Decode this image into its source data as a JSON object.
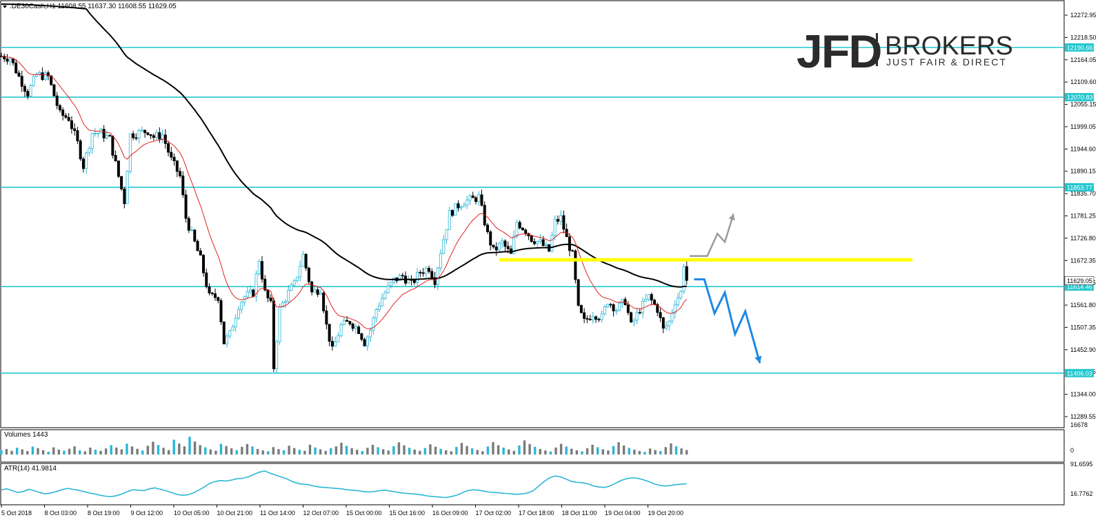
{
  "header": {
    "symbol_info": ".DE30Cash,H1  11608.55 11637.30 11608.55 11629.05",
    "volume_title": "Volumes 1443",
    "atr_title": "ATR(14) 41.9814"
  },
  "logo": {
    "main": "JFD",
    "secondary": "BROKERS",
    "tagline": "JUST FAIR & DIRECT"
  },
  "colors": {
    "candle_up": "#29b6d6",
    "candle_down": "#000000",
    "horizontal_level": "#22c7cf",
    "ma_slow": "#000000",
    "ma_fast": "#e02020",
    "yellow_line": "#ffff00",
    "scenario_up": "#9a9a9a",
    "scenario_down": "#1e88e5",
    "atr_line": "#29b6d6"
  },
  "chart_data": {
    "type": "candlestick",
    "instrument": ".DE30Cash",
    "timeframe": "H1",
    "price_axis": {
      "range": [
        11289.55,
        12295
      ],
      "tick_labels": [
        "12272.95",
        "12218.50",
        "12164.05",
        "12109.60",
        "12055.15",
        "11999.05",
        "11944.60",
        "11890.15",
        "11835.70",
        "11781.25",
        "11726.80",
        "11672.35",
        "11616.25",
        "11561.80",
        "11507.35",
        "11452.90",
        "11398.45",
        "11344.00",
        "11289.55"
      ]
    },
    "x_tick_labels": [
      "5 Oct 2018",
      "8 Oct 03:00",
      "8 Oct 19:00",
      "9 Oct 12:00",
      "10 Oct 05:00",
      "10 Oct 21:00",
      "11 Oct 14:00",
      "12 Oct 07:00",
      "15 Oct 00:00",
      "15 Oct 16:00",
      "16 Oct 09:00",
      "17 Oct 02:00",
      "17 Oct 18:00",
      "18 Oct 11:00",
      "19 Oct 04:00",
      "19 Oct 20:00"
    ],
    "levels": [
      {
        "value": 12190.66,
        "label": "12190.66"
      },
      {
        "value": 12070.83,
        "label": "12070.83"
      },
      {
        "value": 11853.77,
        "label": "11853.77"
      },
      {
        "value": 11614.46,
        "label": "11614.46"
      },
      {
        "value": 11406.03,
        "label": "11406.03"
      }
    ],
    "current_price": {
      "value": 11629.05,
      "label": "11629.05"
    },
    "yellow_level": 11679,
    "close_path": [
      {
        "x": 0,
        "y": 12170
      },
      {
        "x": 6,
        "y": 12165
      },
      {
        "x": 12,
        "y": 12120
      },
      {
        "x": 18,
        "y": 12080
      },
      {
        "x": 24,
        "y": 12125
      },
      {
        "x": 32,
        "y": 12120
      },
      {
        "x": 36,
        "y": 12075
      },
      {
        "x": 40,
        "y": 12030
      },
      {
        "x": 46,
        "y": 12020
      },
      {
        "x": 52,
        "y": 11960
      },
      {
        "x": 56,
        "y": 11905
      },
      {
        "x": 62,
        "y": 11985
      },
      {
        "x": 68,
        "y": 11985
      },
      {
        "x": 74,
        "y": 11970
      },
      {
        "x": 80,
        "y": 11880
      },
      {
        "x": 84,
        "y": 11820
      },
      {
        "x": 88,
        "y": 11980
      },
      {
        "x": 94,
        "y": 11985
      },
      {
        "x": 100,
        "y": 11990
      },
      {
        "x": 104,
        "y": 11975
      },
      {
        "x": 110,
        "y": 11980
      },
      {
        "x": 116,
        "y": 11920
      },
      {
        "x": 122,
        "y": 11880
      },
      {
        "x": 126,
        "y": 11780
      },
      {
        "x": 132,
        "y": 11720
      },
      {
        "x": 136,
        "y": 11680
      },
      {
        "x": 142,
        "y": 11590
      },
      {
        "x": 148,
        "y": 11590
      },
      {
        "x": 152,
        "y": 11480
      },
      {
        "x": 156,
        "y": 11500
      },
      {
        "x": 162,
        "y": 11570
      },
      {
        "x": 166,
        "y": 11590
      },
      {
        "x": 172,
        "y": 11600
      },
      {
        "x": 176,
        "y": 11680
      },
      {
        "x": 180,
        "y": 11600
      },
      {
        "x": 184,
        "y": 11570
      },
      {
        "x": 186,
        "y": 11420
      },
      {
        "x": 190,
        "y": 11560
      },
      {
        "x": 196,
        "y": 11600
      },
      {
        "x": 200,
        "y": 11620
      },
      {
        "x": 206,
        "y": 11690
      },
      {
        "x": 212,
        "y": 11600
      },
      {
        "x": 218,
        "y": 11610
      },
      {
        "x": 222,
        "y": 11520
      },
      {
        "x": 226,
        "y": 11460
      },
      {
        "x": 232,
        "y": 11520
      },
      {
        "x": 238,
        "y": 11530
      },
      {
        "x": 244,
        "y": 11510
      },
      {
        "x": 248,
        "y": 11480
      },
      {
        "x": 252,
        "y": 11510
      },
      {
        "x": 256,
        "y": 11560
      },
      {
        "x": 262,
        "y": 11600
      },
      {
        "x": 268,
        "y": 11630
      },
      {
        "x": 274,
        "y": 11640
      },
      {
        "x": 280,
        "y": 11620
      },
      {
        "x": 286,
        "y": 11650
      },
      {
        "x": 292,
        "y": 11660
      },
      {
        "x": 296,
        "y": 11630
      },
      {
        "x": 300,
        "y": 11700
      },
      {
        "x": 306,
        "y": 11790
      },
      {
        "x": 312,
        "y": 11810
      },
      {
        "x": 316,
        "y": 11820
      },
      {
        "x": 322,
        "y": 11825
      },
      {
        "x": 326,
        "y": 11830
      },
      {
        "x": 332,
        "y": 11740
      },
      {
        "x": 336,
        "y": 11700
      },
      {
        "x": 342,
        "y": 11720
      },
      {
        "x": 348,
        "y": 11690
      },
      {
        "x": 352,
        "y": 11770
      },
      {
        "x": 358,
        "y": 11750
      },
      {
        "x": 362,
        "y": 11730
      },
      {
        "x": 368,
        "y": 11720
      },
      {
        "x": 374,
        "y": 11700
      },
      {
        "x": 378,
        "y": 11770
      },
      {
        "x": 382,
        "y": 11780
      },
      {
        "x": 386,
        "y": 11730
      },
      {
        "x": 390,
        "y": 11690
      },
      {
        "x": 394,
        "y": 11560
      },
      {
        "x": 398,
        "y": 11530
      },
      {
        "x": 404,
        "y": 11550
      },
      {
        "x": 410,
        "y": 11540
      },
      {
        "x": 414,
        "y": 11580
      },
      {
        "x": 420,
        "y": 11560
      },
      {
        "x": 426,
        "y": 11580
      },
      {
        "x": 430,
        "y": 11520
      },
      {
        "x": 436,
        "y": 11560
      },
      {
        "x": 442,
        "y": 11590
      },
      {
        "x": 448,
        "y": 11560
      },
      {
        "x": 452,
        "y": 11510
      },
      {
        "x": 456,
        "y": 11530
      },
      {
        "x": 460,
        "y": 11580
      },
      {
        "x": 464,
        "y": 11600
      },
      {
        "x": 466,
        "y": 11670
      },
      {
        "x": 468,
        "y": 11630
      }
    ],
    "projected_paths": {
      "bullish": [
        {
          "x": 470,
          "y": 11688
        },
        {
          "x": 482,
          "y": 11688
        },
        {
          "x": 489,
          "y": 11742
        },
        {
          "x": 494,
          "y": 11722
        },
        {
          "x": 500,
          "y": 11790
        }
      ],
      "bearish": [
        {
          "x": 473,
          "y": 11632
        },
        {
          "x": 480,
          "y": 11632
        },
        {
          "x": 487,
          "y": 11550
        },
        {
          "x": 494,
          "y": 11600
        },
        {
          "x": 501,
          "y": 11500
        },
        {
          "x": 508,
          "y": 11555
        },
        {
          "x": 518,
          "y": 11430
        }
      ]
    },
    "volume": {
      "axis_labels": [
        "16678",
        "0"
      ],
      "max": 16678,
      "values": [
        3200,
        4200,
        2800,
        5100,
        3900,
        2600,
        6000,
        4800,
        3300,
        2100,
        5400,
        3700,
        2900,
        4400,
        6200,
        3100,
        2400,
        5200,
        3600,
        2800,
        4600,
        7100,
        5300,
        3900,
        8200,
        6100,
        4300,
        3000,
        6600,
        9700,
        7200,
        5100,
        3400,
        11200,
        8300,
        6200,
        13500,
        9800,
        7100,
        5400,
        3800,
        2900,
        8100,
        6400,
        4700,
        3300,
        5800,
        7900,
        6100,
        4200,
        3100,
        2500,
        5600,
        4100,
        3200,
        6700,
        4900,
        3600,
        2800,
        7400,
        5300,
        3900,
        2700,
        4800,
        6200,
        8900,
        6600,
        4800,
        3500,
        2600,
        5100,
        7300,
        5500,
        4000,
        3000,
        6300,
        9200,
        6900,
        5100,
        3700,
        2800,
        4900,
        7700,
        5900,
        4300,
        3200,
        2400,
        5700,
        8800,
        6500,
        4700,
        3400,
        2500,
        6100,
        9400,
        7000,
        5200,
        3800,
        2800,
        6900,
        10700,
        7900,
        5800,
        4200,
        3100,
        2300,
        5300,
        8100,
        6000,
        4400,
        3200,
        2400,
        4700,
        7400,
        5500,
        4000,
        3000,
        6400,
        9300,
        6800,
        5000,
        3600,
        2700,
        2000,
        4500,
        3400,
        2600,
        5600,
        8400,
        6200,
        4600,
        3400
      ]
    },
    "atr": {
      "name": "ATR(14)",
      "axis_labels": [
        "91.6595",
        "16.7762"
      ],
      "range": [
        16.7762,
        91.6595
      ],
      "values": [
        42,
        44,
        40,
        36,
        38,
        43,
        40,
        36,
        33,
        35,
        38,
        42,
        45,
        43,
        41,
        38,
        35,
        33,
        30,
        28,
        27,
        29,
        33,
        38,
        42,
        41,
        40,
        44,
        46,
        43,
        40,
        36,
        32,
        30,
        31,
        35,
        41,
        48,
        56,
        60,
        62,
        61,
        63,
        66,
        67,
        70,
        75,
        80,
        83,
        78,
        74,
        70,
        66,
        60,
        56,
        54,
        53,
        50,
        48,
        47,
        46,
        45,
        44,
        42,
        41,
        40,
        38,
        37,
        38,
        40,
        41,
        39,
        37,
        35,
        34,
        33,
        32,
        30,
        28,
        27,
        26,
        25,
        27,
        30,
        35,
        40,
        42,
        41,
        39,
        37,
        36,
        35,
        34,
        33,
        32,
        33,
        35,
        40,
        50,
        60,
        68,
        72,
        70,
        65,
        60,
        58,
        57,
        55,
        50,
        48,
        47,
        50,
        56,
        62,
        66,
        68,
        67,
        64,
        60,
        55,
        52,
        50,
        51,
        53,
        54,
        55
      ]
    }
  }
}
